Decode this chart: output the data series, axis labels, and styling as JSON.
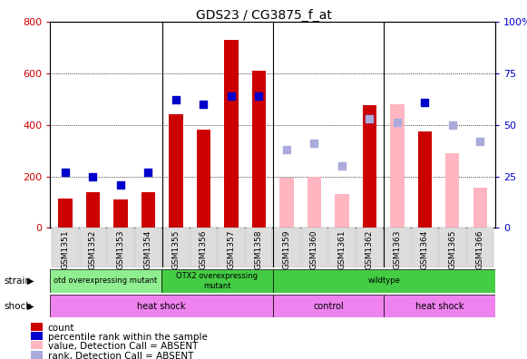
{
  "title": "GDS23 / CG3875_f_at",
  "samples": [
    "GSM1351",
    "GSM1352",
    "GSM1353",
    "GSM1354",
    "GSM1355",
    "GSM1356",
    "GSM1357",
    "GSM1358",
    "GSM1359",
    "GSM1360",
    "GSM1361",
    "GSM1362",
    "GSM1363",
    "GSM1364",
    "GSM1365",
    "GSM1366"
  ],
  "count_present": [
    115,
    140,
    110,
    140,
    440,
    380,
    730,
    610,
    null,
    null,
    null,
    475,
    null,
    375,
    null,
    null
  ],
  "count_absent": [
    null,
    null,
    null,
    null,
    null,
    null,
    null,
    null,
    195,
    200,
    130,
    null,
    480,
    null,
    290,
    155
  ],
  "rank_present_pct": [
    27,
    25,
    21,
    27,
    62,
    60,
    64,
    64,
    null,
    null,
    null,
    53,
    null,
    61,
    null,
    null
  ],
  "rank_absent_pct": [
    null,
    null,
    null,
    null,
    null,
    null,
    null,
    null,
    38,
    41,
    30,
    53,
    51,
    null,
    50,
    42
  ],
  "ylim_left": [
    0,
    800
  ],
  "ylim_right": [
    0,
    100
  ],
  "yticks_left": [
    0,
    200,
    400,
    600,
    800
  ],
  "ytick_labels_left": [
    "0",
    "200",
    "400",
    "600",
    "800"
  ],
  "yticks_right": [
    0,
    25,
    50,
    75,
    100
  ],
  "ytick_labels_right": [
    "0",
    "25",
    "50",
    "75",
    "100%"
  ],
  "count_color": "#CC0000",
  "count_absent_color": "#FFB6C1",
  "rank_color": "#0000CC",
  "rank_absent_color": "#AAAADD",
  "bg_color": "#FFFFFF",
  "strain_rects": [
    {
      "start": 0,
      "end": 4,
      "color": "#90EE90",
      "label": "otd overexpressing mutant"
    },
    {
      "start": 4,
      "end": 8,
      "color": "#44CC44",
      "label": "OTX2 overexpressing\nmutant"
    },
    {
      "start": 8,
      "end": 16,
      "color": "#44CC44",
      "label": "wildtype"
    }
  ],
  "shock_rects": [
    {
      "start": 0,
      "end": 8,
      "color": "#EE82EE",
      "label": "heat shock"
    },
    {
      "start": 8,
      "end": 12,
      "color": "#EE82EE",
      "label": "control"
    },
    {
      "start": 12,
      "end": 16,
      "color": "#EE82EE",
      "label": "heat shock"
    }
  ],
  "group_dividers": [
    3.5,
    7.5,
    11.5
  ],
  "legend": [
    {
      "color": "#CC0000",
      "label": "count"
    },
    {
      "color": "#0000CC",
      "label": "percentile rank within the sample"
    },
    {
      "color": "#FFB6C1",
      "label": "value, Detection Call = ABSENT"
    },
    {
      "color": "#AAAADD",
      "label": "rank, Detection Call = ABSENT"
    }
  ]
}
